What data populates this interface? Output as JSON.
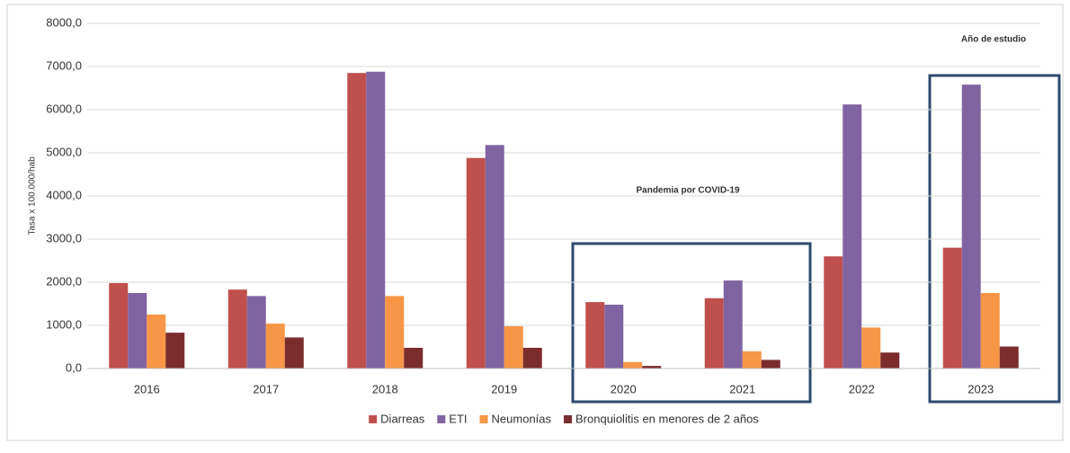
{
  "chart_data": {
    "type": "bar",
    "y_label": "Tasa x 100.000/hab",
    "annotations": [
      "Pandemia por COVID-19",
      "Año de estudio"
    ],
    "categories": [
      "2016",
      "2017",
      "2018",
      "2019",
      "2020",
      "2021",
      "2022",
      "2023"
    ],
    "series": [
      {
        "name": "Diarreas",
        "color": "#c0504d",
        "values": [
          1980,
          1830,
          6850,
          4880,
          1540,
          1630,
          2600,
          2800
        ]
      },
      {
        "name": "ETI",
        "color": "#8064a2",
        "values": [
          1750,
          1680,
          6880,
          5180,
          1480,
          2040,
          6120,
          6580
        ]
      },
      {
        "name": "Neumonías",
        "color": "#f79646",
        "values": [
          1250,
          1040,
          1680,
          980,
          150,
          400,
          950,
          1750
        ]
      },
      {
        "name": "Bronquiolitis en menores de 2 años",
        "color": "#7b2c2c",
        "values": [
          830,
          720,
          480,
          480,
          60,
          200,
          370,
          510
        ]
      }
    ],
    "ylim": [
      0,
      8000
    ],
    "yticks": [
      {
        "value": 0,
        "label": "0,0"
      },
      {
        "value": 1000,
        "label": "1000,0"
      },
      {
        "value": 2000,
        "label": "2000,0"
      },
      {
        "value": 3000,
        "label": "3000,0"
      },
      {
        "value": 4000,
        "label": "4000,0"
      },
      {
        "value": 5000,
        "label": "5000,0"
      },
      {
        "value": 6000,
        "label": "6000,0"
      },
      {
        "value": 7000,
        "label": "7000,0"
      },
      {
        "value": 8000,
        "label": "8000,0"
      }
    ],
    "grid": true,
    "legend": "bottom"
  }
}
